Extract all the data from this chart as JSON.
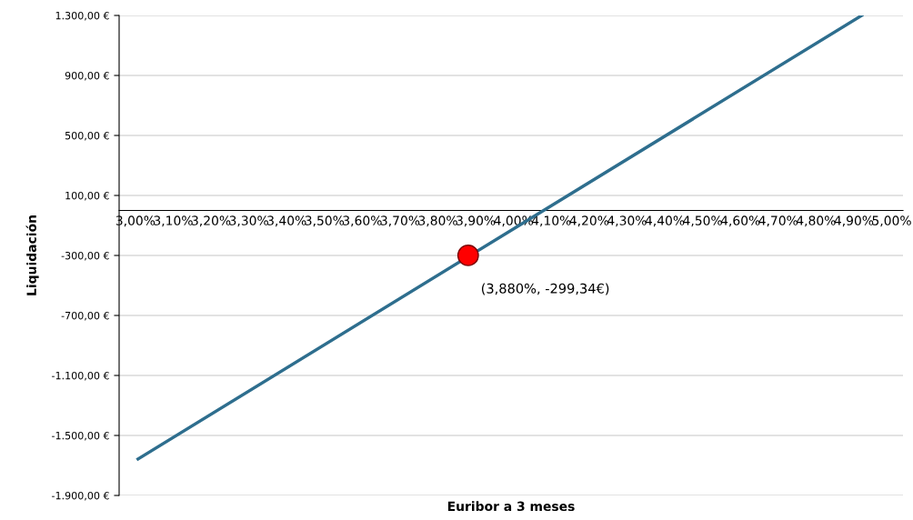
{
  "chart_data": {
    "type": "line",
    "xlabel": "Euribor a 3 meses",
    "ylabel": "Liquidación",
    "series": [
      {
        "color": "#2e6e8e",
        "x": [
          3.007,
          4.921
        ],
        "values": [
          -1657,
          1300
        ]
      },
      {
        "type": "scatter",
        "color": "#ff0000",
        "x": [
          3.88
        ],
        "values": [
          -299.34
        ]
      }
    ],
    "annotations": [
      {
        "text": "(3,880%, -299,34€)",
        "x": 3.88,
        "y": -299.34
      }
    ],
    "xlim": [
      2.957,
      5.03
    ],
    "xticks": [
      {
        "value": 3.0,
        "label": "3,00%"
      },
      {
        "value": 3.1,
        "label": "3,10%"
      },
      {
        "value": 3.2,
        "label": "3,20%"
      },
      {
        "value": 3.3,
        "label": "3,30%"
      },
      {
        "value": 3.4,
        "label": "3,40%"
      },
      {
        "value": 3.5,
        "label": "3,50%"
      },
      {
        "value": 3.6,
        "label": "3,60%"
      },
      {
        "value": 3.7,
        "label": "3,70%"
      },
      {
        "value": 3.8,
        "label": "3,80%"
      },
      {
        "value": 3.9,
        "label": "3,90%"
      },
      {
        "value": 4.0,
        "label": "4,00%"
      },
      {
        "value": 4.1,
        "label": "4,10%"
      },
      {
        "value": 4.2,
        "label": "4,20%"
      },
      {
        "value": 4.3,
        "label": "4,30%"
      },
      {
        "value": 4.4,
        "label": "4,40%"
      },
      {
        "value": 4.5,
        "label": "4,50%"
      },
      {
        "value": 4.6,
        "label": "4,60%"
      },
      {
        "value": 4.7,
        "label": "4,70%"
      },
      {
        "value": 4.8,
        "label": "4,80%"
      },
      {
        "value": 4.9,
        "label": "4,90%"
      },
      {
        "value": 5.0,
        "label": "5,00%"
      }
    ],
    "ylim": [
      -1900,
      1300
    ],
    "yticks": [
      {
        "value": -1900,
        "label": "-1.900,00 €"
      },
      {
        "value": -1500,
        "label": "-1.500,00 €"
      },
      {
        "value": -1100,
        "label": "-1.100,00 €"
      },
      {
        "value": -700,
        "label": "-700,00 €"
      },
      {
        "value": -300,
        "label": "-300,00 €"
      },
      {
        "value": 100,
        "label": "100,00 €"
      },
      {
        "value": 500,
        "label": "500,00 €"
      },
      {
        "value": 900,
        "label": "900,00 €"
      },
      {
        "value": 1300,
        "label": "1.300,00 €"
      }
    ],
    "grid": "y",
    "line_style": "solid",
    "legend": false
  }
}
